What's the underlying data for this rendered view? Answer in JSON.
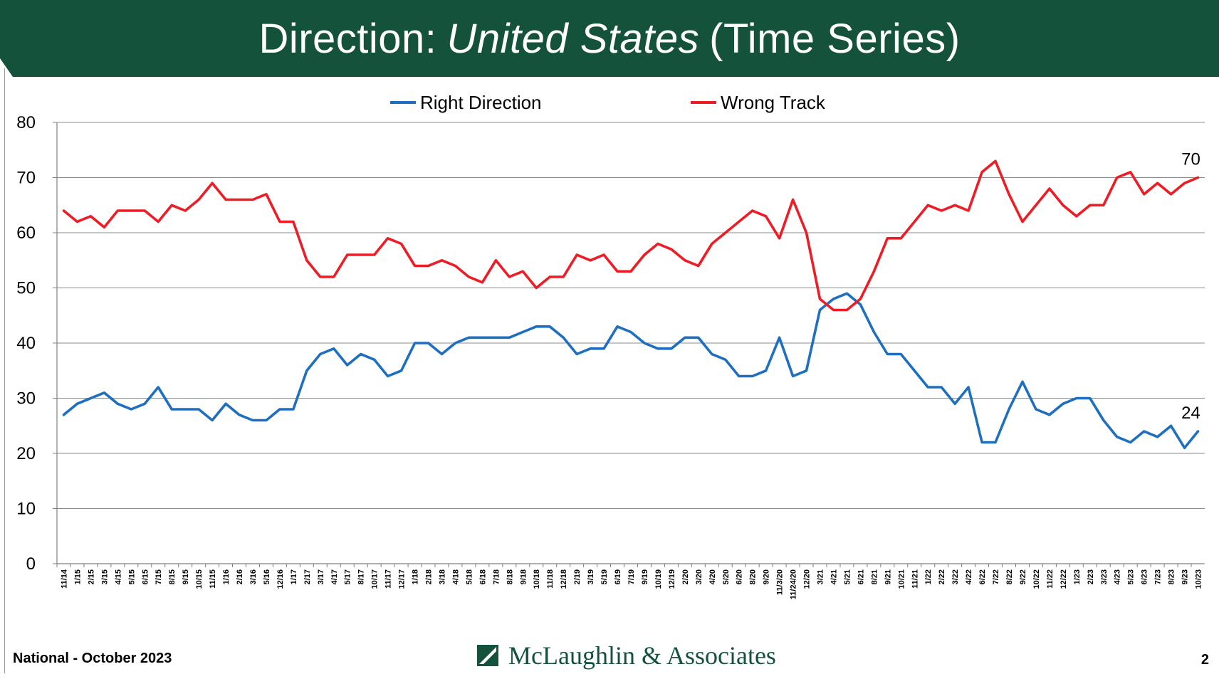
{
  "header": {
    "title_prefix": "Direction:",
    "title_italic": "United States",
    "title_suffix": "(Time Series)"
  },
  "footer": {
    "left_text": "National - October 2023",
    "logo_text": "McLaughlin & Associates",
    "page_number": "2"
  },
  "colors": {
    "brand_green": "#14523c",
    "right_direction": "#1f6fc0",
    "wrong_track": "#ee1c25"
  },
  "chart_data": {
    "type": "line",
    "title": "",
    "xlabel": "",
    "ylabel": "",
    "ylim": [
      0,
      80
    ],
    "yticks": [
      0,
      10,
      20,
      30,
      40,
      50,
      60,
      70,
      80
    ],
    "grid": true,
    "legend_position": "top-center",
    "x": [
      "11/14",
      "1/15",
      "2/15",
      "3/15",
      "4/15",
      "5/15",
      "6/15",
      "7/15",
      "8/15",
      "9/15",
      "10/15",
      "11/15",
      "1/16",
      "2/16",
      "3/16",
      "5/16",
      "12/16",
      "1/17",
      "2/17",
      "3/17",
      "4/17",
      "5/17",
      "8/17",
      "10/17",
      "11/17",
      "12/17",
      "1/18",
      "2/18",
      "3/18",
      "4/18",
      "5/18",
      "6/18",
      "7/18",
      "8/18",
      "9/18",
      "10/18",
      "11/18",
      "12/18",
      "2/19",
      "3/19",
      "5/19",
      "6/19",
      "7/19",
      "9/19",
      "10/19",
      "12/19",
      "2/20",
      "3/20",
      "4/20",
      "5/20",
      "6/20",
      "8/20",
      "9/20",
      "11/3/20",
      "11/24/20",
      "12/20",
      "3/21",
      "4/21",
      "5/21",
      "6/21",
      "8/21",
      "9/21",
      "10/21",
      "11/21",
      "1/22",
      "2/22",
      "3/22",
      "4/22",
      "6/22",
      "7/22",
      "8/22",
      "9/22",
      "10/22",
      "11/22",
      "12/22",
      "1/23",
      "2/23",
      "3/23",
      "4/23",
      "5/23",
      "6/23",
      "7/23",
      "8/23",
      "9/23",
      "10/23"
    ],
    "series": [
      {
        "name": "Right Direction",
        "color": "#1f6fc0",
        "end_label": "24",
        "values": [
          27,
          29,
          30,
          31,
          29,
          28,
          29,
          32,
          28,
          28,
          28,
          26,
          29,
          27,
          26,
          26,
          28,
          28,
          35,
          38,
          39,
          36,
          38,
          37,
          34,
          35,
          40,
          40,
          38,
          40,
          41,
          41,
          41,
          41,
          42,
          43,
          43,
          41,
          38,
          39,
          39,
          43,
          42,
          40,
          39,
          39,
          41,
          41,
          38,
          37,
          34,
          34,
          35,
          41,
          34,
          35,
          46,
          48,
          49,
          47,
          42,
          38,
          38,
          35,
          32,
          32,
          29,
          32,
          22,
          22,
          28,
          33,
          28,
          27,
          29,
          30,
          30,
          26,
          23,
          22,
          24,
          23,
          25,
          21,
          24
        ]
      },
      {
        "name": "Wrong Track",
        "color": "#ee1c25",
        "end_label": "70",
        "values": [
          64,
          62,
          63,
          61,
          64,
          64,
          64,
          62,
          65,
          64,
          66,
          69,
          66,
          66,
          66,
          67,
          62,
          62,
          55,
          52,
          52,
          56,
          56,
          56,
          59,
          58,
          54,
          54,
          55,
          54,
          52,
          51,
          55,
          52,
          53,
          50,
          52,
          52,
          56,
          55,
          56,
          53,
          53,
          56,
          58,
          57,
          55,
          54,
          58,
          60,
          62,
          64,
          63,
          59,
          66,
          60,
          48,
          46,
          46,
          48,
          53,
          59,
          59,
          62,
          65,
          64,
          65,
          64,
          71,
          73,
          67,
          62,
          65,
          68,
          65,
          63,
          65,
          65,
          70,
          71,
          67,
          69,
          67,
          69,
          70
        ]
      }
    ]
  }
}
